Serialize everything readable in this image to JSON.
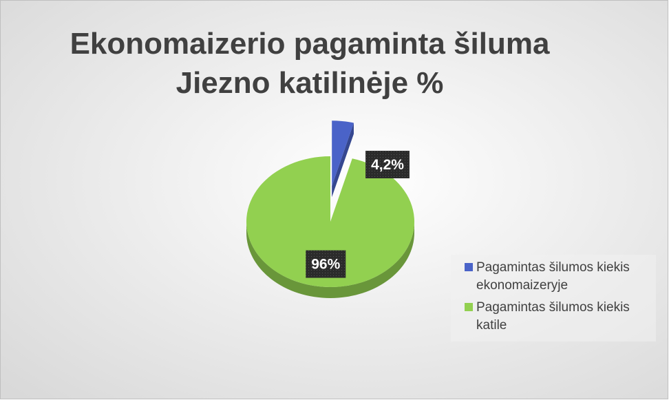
{
  "chart_data": {
    "type": "pie",
    "title": [
      "Ekonomaizerio pagaminta šiluma",
      "Jiezno katilinėje %"
    ],
    "categories": [
      "Pagamintas šilumos kiekis ekonomaizeryje",
      "Pagamintas šilumos kiekis katile"
    ],
    "values": [
      4.2,
      96
    ],
    "value_labels": [
      "4,2%",
      "96%"
    ],
    "colors": [
      "#4a63c8",
      "#92d050"
    ],
    "legend": "right"
  }
}
